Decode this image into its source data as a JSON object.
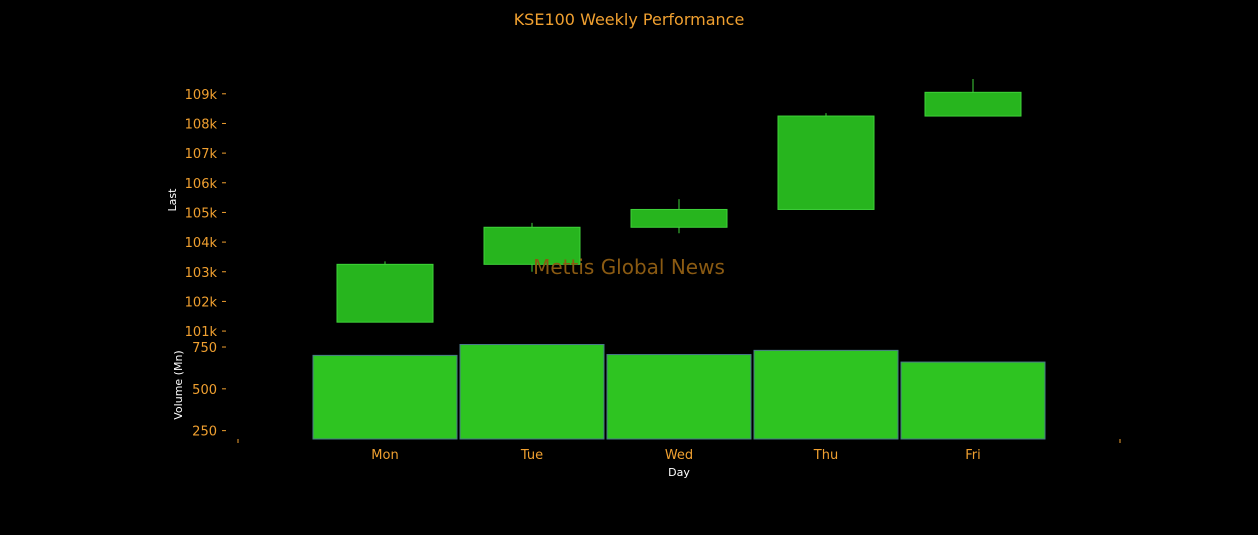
{
  "chart_data": {
    "type": "candlestick",
    "title": "KSE100 Weekly Performance",
    "watermark": "Mettis Global News",
    "categories": [
      "Mon",
      "Tue",
      "Wed",
      "Thu",
      "Fri"
    ],
    "xlabel": "Day",
    "price": {
      "ylabel": "Last",
      "ylim": [
        100800,
        109600
      ],
      "ticks": [
        101000,
        102000,
        103000,
        104000,
        105000,
        106000,
        107000,
        108000,
        109000
      ],
      "tick_labels": [
        "101k",
        "102k",
        "103k",
        "104k",
        "105k",
        "106k",
        "107k",
        "108k",
        "109k"
      ],
      "candles": [
        {
          "day": "Mon",
          "open": 101300,
          "close": 103250,
          "low": 101300,
          "high": 103350
        },
        {
          "day": "Tue",
          "open": 103250,
          "close": 104500,
          "low": 103000,
          "high": 104650
        },
        {
          "day": "Wed",
          "open": 104500,
          "close": 105100,
          "low": 104300,
          "high": 105450
        },
        {
          "day": "Thu",
          "open": 105100,
          "close": 108250,
          "low": 105100,
          "high": 108350
        },
        {
          "day": "Fri",
          "open": 108250,
          "close": 109050,
          "low": 108250,
          "high": 109500
        }
      ]
    },
    "volume": {
      "ylabel": "Volume (Mn)",
      "ylim": [
        200,
        780
      ],
      "ticks": [
        250,
        500,
        750
      ],
      "tick_labels": [
        "250",
        "500",
        "750"
      ],
      "values": [
        700,
        765,
        705,
        730,
        660
      ]
    },
    "colors": {
      "background": "#000000",
      "candle_fill": "#27b51e",
      "candle_stroke": "#3fd23a",
      "volume_fill": "#2ec421",
      "volume_stroke": "#4a7a8a",
      "text": "#f0a030",
      "axis_title": "#ffffff",
      "watermark": "#8a5a12"
    }
  }
}
